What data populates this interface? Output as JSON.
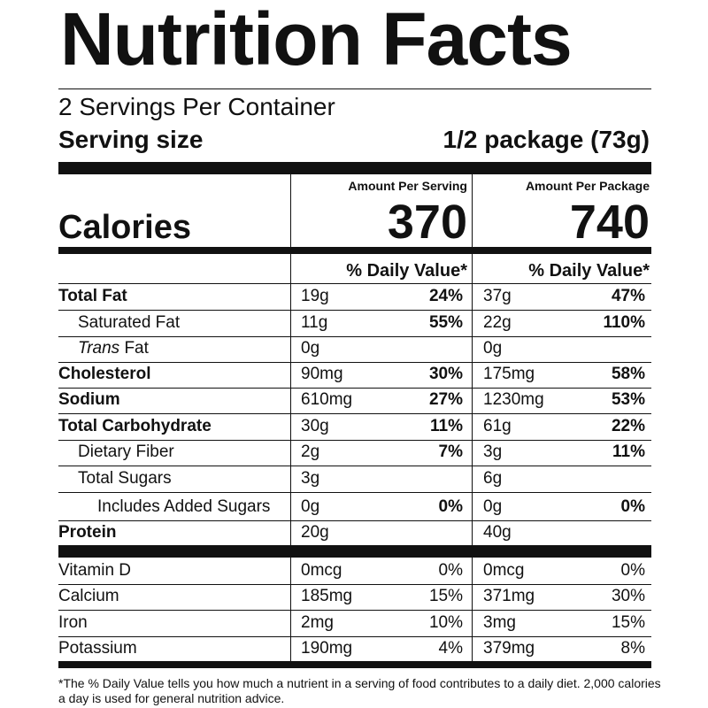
{
  "title": "Nutrition Facts",
  "servings_per_container": "2 Servings Per Container",
  "serving_size": {
    "label": "Serving size",
    "value": "1/2 package (73g)"
  },
  "columns": {
    "per_serving": "Amount Per Serving",
    "per_package": "Amount Per Package"
  },
  "calories": {
    "label": "Calories",
    "per_serving": "370",
    "per_package": "740"
  },
  "daily_value_header": "% Daily Value*",
  "nutrients": [
    {
      "name": "Total Fat",
      "serving_amount": "19g",
      "serving_dv": "24%",
      "package_amount": "37g",
      "package_dv": "47%"
    },
    {
      "name": "Saturated Fat",
      "serving_amount": "11g",
      "serving_dv": "55%",
      "package_amount": "22g",
      "package_dv": "110%"
    },
    {
      "name_italic": "Trans",
      "name_rest": " Fat",
      "serving_amount": "0g",
      "serving_dv": "",
      "package_amount": "0g",
      "package_dv": ""
    },
    {
      "name": "Cholesterol",
      "serving_amount": "90mg",
      "serving_dv": "30%",
      "package_amount": "175mg",
      "package_dv": "58%"
    },
    {
      "name": "Sodium",
      "serving_amount": "610mg",
      "serving_dv": "27%",
      "package_amount": "1230mg",
      "package_dv": "53%"
    },
    {
      "name": "Total Carbohydrate",
      "serving_amount": "30g",
      "serving_dv": "11%",
      "package_amount": "61g",
      "package_dv": "22%"
    },
    {
      "name": "Dietary Fiber",
      "serving_amount": "2g",
      "serving_dv": "7%",
      "package_amount": "3g",
      "package_dv": "11%"
    },
    {
      "name": "Total Sugars",
      "serving_amount": "3g",
      "serving_dv": "",
      "package_amount": "6g",
      "package_dv": ""
    },
    {
      "name": "Includes Added Sugars",
      "serving_amount": "0g",
      "serving_dv": "0%",
      "package_amount": "0g",
      "package_dv": "0%"
    },
    {
      "name": "Protein",
      "serving_amount": "20g",
      "serving_dv": "",
      "package_amount": "40g",
      "package_dv": ""
    }
  ],
  "vitamins": [
    {
      "name": "Vitamin D",
      "serving_amount": "0mcg",
      "serving_dv": "0%",
      "package_amount": "0mcg",
      "package_dv": "0%"
    },
    {
      "name": "Calcium",
      "serving_amount": "185mg",
      "serving_dv": "15%",
      "package_amount": "371mg",
      "package_dv": "30%"
    },
    {
      "name": "Iron",
      "serving_amount": "2mg",
      "serving_dv": "10%",
      "package_amount": "3mg",
      "package_dv": "15%"
    },
    {
      "name": "Potassium",
      "serving_amount": "190mg",
      "serving_dv": "4%",
      "package_amount": "379mg",
      "package_dv": "8%"
    }
  ],
  "footnote": "*The % Daily Value tells you how much a nutrient in a serving of food contributes to a daily diet. 2,000 calories a day is used for general nutrition advice."
}
